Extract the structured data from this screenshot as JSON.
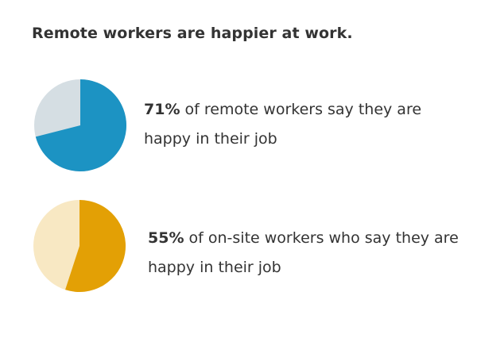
{
  "chart_data": {
    "title": "Remote workers are happier at work.",
    "type": "pie",
    "charts": [
      {
        "percent": 71,
        "percent_label": "71%",
        "caption": "of remote workers say they are happy in their job",
        "colors": {
          "highlight": "#1C93C3",
          "remainder": "#D5DEE3"
        }
      },
      {
        "percent": 55,
        "percent_label": "55%",
        "caption": "of on-site workers who say they are happy in their job",
        "colors": {
          "highlight": "#E3A005",
          "remainder": "#F8E8C3"
        }
      }
    ]
  }
}
